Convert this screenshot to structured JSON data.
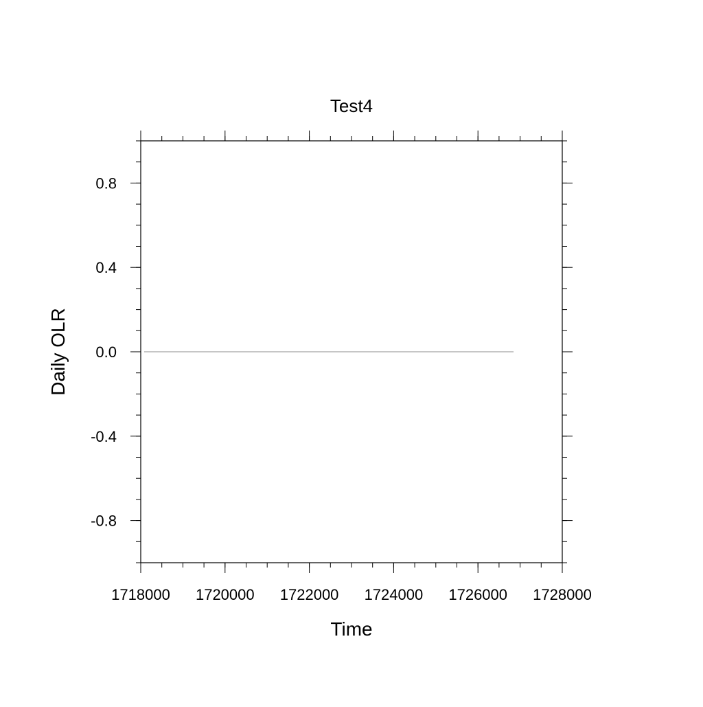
{
  "chart_data": {
    "type": "line",
    "title": "Test4",
    "xlabel": "Time",
    "ylabel": "Daily OLR",
    "xlim": [
      1718000,
      1728000
    ],
    "ylim": [
      -1,
      1
    ],
    "x_ticks": [
      1718000,
      1720000,
      1722000,
      1724000,
      1726000,
      1728000
    ],
    "x_tick_labels": [
      "1718000",
      "1720000",
      "1722000",
      "1724000",
      "1726000",
      "1728000"
    ],
    "x_minor_step": 500,
    "y_ticks": [
      0.8,
      0.4,
      0.0,
      -0.4,
      -0.8
    ],
    "y_tick_labels": [
      "0.8",
      "0.4",
      "0.0",
      "-0.4",
      "-0.8"
    ],
    "y_minor_step": 0.1,
    "grid": false,
    "series": [
      {
        "x": [
          1718080,
          1726845
        ],
        "y": [
          0,
          0
        ],
        "color": "#b4b4b4"
      }
    ]
  }
}
